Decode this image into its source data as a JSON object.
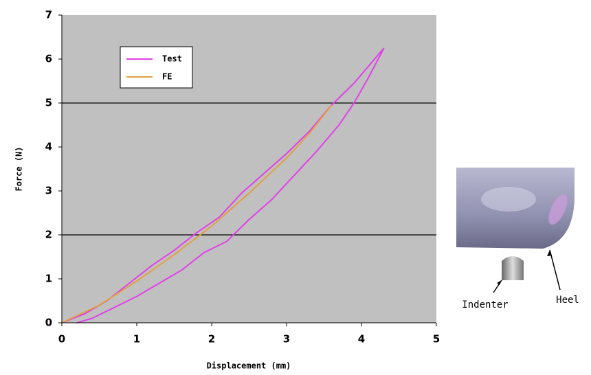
{
  "chart_data": {
    "type": "line",
    "x_label": "Displacement (mm)",
    "y_label": "Force (N)",
    "xlim": [
      0,
      5
    ],
    "ylim": [
      0,
      7
    ],
    "xticks": [
      0,
      1,
      2,
      3,
      4,
      5
    ],
    "yticks": [
      0,
      1,
      2,
      3,
      4,
      5,
      6,
      7
    ],
    "grid_lines": [
      2,
      5
    ],
    "legend": "upper left",
    "series": [
      {
        "name": "Test",
        "color": "#e040e8",
        "x": [
          0,
          0.3,
          0.6,
          0.9,
          1.2,
          1.5,
          1.8,
          2.1,
          2.4,
          2.7,
          3.0,
          3.3,
          3.6,
          3.9,
          4.1,
          4.3,
          4.1,
          3.9,
          3.7,
          3.4,
          3.1,
          2.8,
          2.5,
          2.2,
          1.9,
          1.6,
          1.3,
          1.0,
          0.7,
          0.4,
          0.2
        ],
        "values": [
          0,
          0.2,
          0.5,
          0.9,
          1.3,
          1.65,
          2.05,
          2.4,
          2.95,
          3.4,
          3.85,
          4.35,
          4.95,
          5.45,
          5.85,
          6.25,
          5.6,
          5.0,
          4.5,
          3.9,
          3.35,
          2.8,
          2.35,
          1.85,
          1.6,
          1.2,
          0.9,
          0.6,
          0.35,
          0.1,
          0
        ]
      },
      {
        "name": "FE",
        "color": "#e0a040",
        "x": [
          0,
          0.5,
          1.0,
          1.5,
          2.0,
          2.5,
          3.0,
          3.3,
          3.6
        ],
        "values": [
          0,
          0.4,
          0.95,
          1.55,
          2.2,
          2.95,
          3.75,
          4.3,
          4.95
        ]
      }
    ],
    "annotations": [
      "Indenter",
      "Heel"
    ]
  }
}
